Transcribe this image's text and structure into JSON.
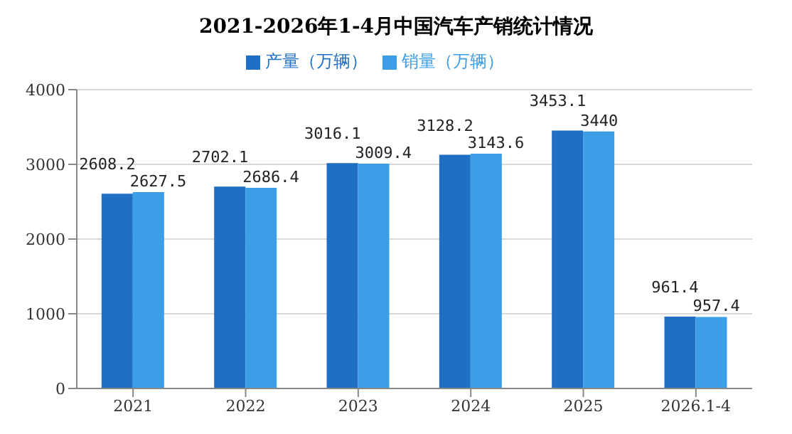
{
  "chart_data": {
    "type": "bar",
    "title": "2021-2026年1-4月中国汽车产销统计情况",
    "categories": [
      "2021",
      "2022",
      "2023",
      "2024",
      "2025",
      "2026.1-4"
    ],
    "series": [
      {
        "name": "产量（万辆）",
        "color": "#1f6fc5",
        "values": [
          2608.2,
          2702.1,
          3016.1,
          3128.2,
          3453.1,
          961.4
        ]
      },
      {
        "name": "销量（万辆）",
        "color": "#3d9ee8",
        "values": [
          2627.5,
          2686.4,
          3009.4,
          3143.6,
          3440,
          957.4
        ]
      }
    ],
    "ylim": [
      0,
      4000
    ],
    "yticks": [
      0,
      1000,
      2000,
      3000,
      4000
    ],
    "grid": "y",
    "legend": "top",
    "data_labels": true
  }
}
